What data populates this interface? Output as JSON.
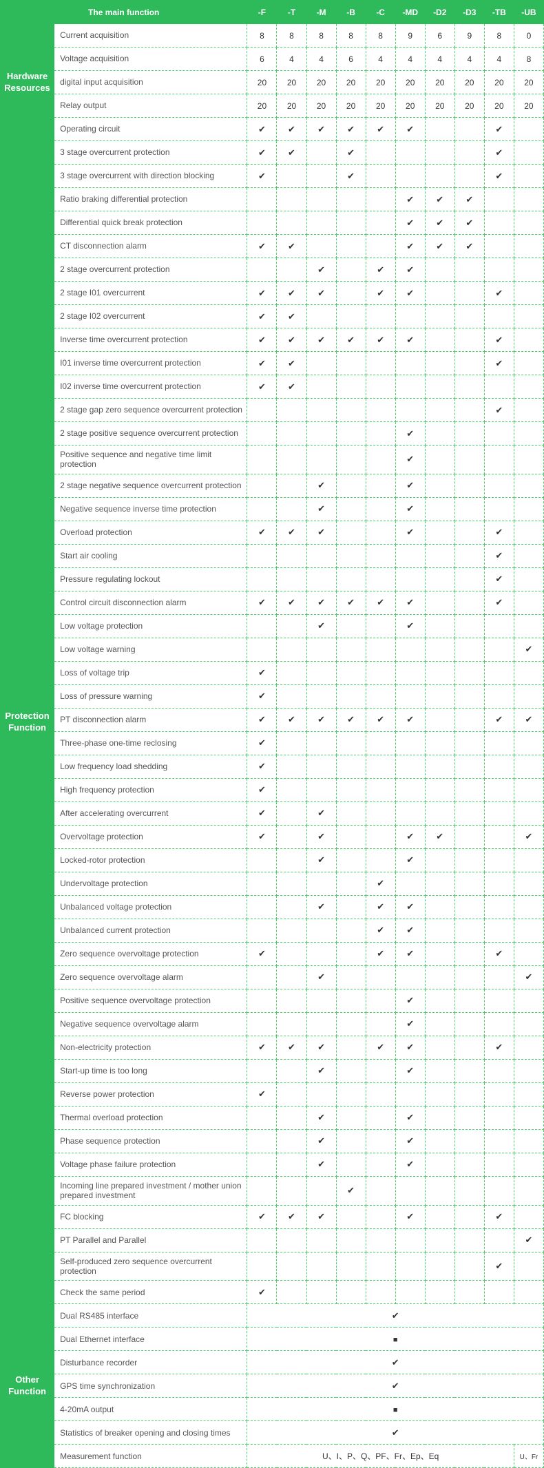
{
  "header": {
    "main": "The main function",
    "cols": [
      "-F",
      "-T",
      "-M",
      "-B",
      "-C",
      "-MD",
      "-D2",
      "-D3",
      "-TB",
      "-UB"
    ]
  },
  "groups": [
    {
      "title": "Hardware Resources",
      "rows": [
        {
          "name": "Current acquisition",
          "v": [
            "8",
            "8",
            "8",
            "8",
            "8",
            "9",
            "6",
            "9",
            "8",
            "0"
          ]
        },
        {
          "name": "Voltage acquisition",
          "v": [
            "6",
            "4",
            "4",
            "6",
            "4",
            "4",
            "4",
            "4",
            "4",
            "8"
          ]
        },
        {
          "name": "digital input acquisition",
          "v": [
            "20",
            "20",
            "20",
            "20",
            "20",
            "20",
            "20",
            "20",
            "20",
            "20"
          ]
        },
        {
          "name": "Relay output",
          "v": [
            "20",
            "20",
            "20",
            "20",
            "20",
            "20",
            "20",
            "20",
            "20",
            "20"
          ]
        },
        {
          "name": "Operating circuit",
          "v": [
            "c",
            "c",
            "c",
            "c",
            "c",
            "c",
            "",
            "",
            "c",
            ""
          ]
        }
      ]
    },
    {
      "title": "Protection Function",
      "rows": [
        {
          "name": "3 stage overcurrent protection",
          "v": [
            "c",
            "c",
            "",
            "c",
            "",
            "",
            "",
            "",
            "c",
            ""
          ]
        },
        {
          "name": "3 stage overcurrent with direction blocking",
          "v": [
            "c",
            "",
            "",
            "c",
            "",
            "",
            "",
            "",
            "c",
            ""
          ]
        },
        {
          "name": "Ratio braking differential protection",
          "v": [
            "",
            "",
            "",
            "",
            "",
            "c",
            "c",
            "c",
            "",
            ""
          ]
        },
        {
          "name": "Differential quick break protection",
          "v": [
            "",
            "",
            "",
            "",
            "",
            "c",
            "c",
            "c",
            "",
            ""
          ]
        },
        {
          "name": "CT disconnection alarm",
          "v": [
            "c",
            "c",
            "",
            "",
            "",
            "c",
            "c",
            "c",
            "",
            ""
          ]
        },
        {
          "name": "2 stage overcurrent protection",
          "v": [
            "",
            "",
            "c",
            "",
            "c",
            "c",
            "",
            "",
            "",
            ""
          ]
        },
        {
          "name": "2 stage I01 overcurrent",
          "v": [
            "c",
            "c",
            "c",
            "",
            "c",
            "c",
            "",
            "",
            "c",
            ""
          ]
        },
        {
          "name": "2 stage I02 overcurrent",
          "v": [
            "c",
            "c",
            "",
            "",
            "",
            "",
            "",
            "",
            "",
            ""
          ]
        },
        {
          "name": "Inverse time overcurrent protection",
          "v": [
            "c",
            "c",
            "c",
            "c",
            "c",
            "c",
            "",
            "",
            "c",
            ""
          ]
        },
        {
          "name": "I01 inverse time overcurrent protection",
          "v": [
            "c",
            "c",
            "",
            "",
            "",
            "",
            "",
            "",
            "c",
            ""
          ]
        },
        {
          "name": "I02 inverse time overcurrent protection",
          "v": [
            "c",
            "c",
            "",
            "",
            "",
            "",
            "",
            "",
            "",
            ""
          ]
        },
        {
          "name": "2 stage gap zero sequence overcurrent protection",
          "v": [
            "",
            "",
            "",
            "",
            "",
            "",
            "",
            "",
            "c",
            ""
          ]
        },
        {
          "name": "2 stage positive sequence overcurrent protection",
          "v": [
            "",
            "",
            "",
            "",
            "",
            "c",
            "",
            "",
            "",
            ""
          ]
        },
        {
          "name": "Positive sequence and negative time limit protection",
          "v": [
            "",
            "",
            "",
            "",
            "",
            "c",
            "",
            "",
            "",
            ""
          ]
        },
        {
          "name": "2 stage negative sequence overcurrent protection",
          "v": [
            "",
            "",
            "c",
            "",
            "",
            "c",
            "",
            "",
            "",
            ""
          ]
        },
        {
          "name": "Negative sequence inverse time protection",
          "v": [
            "",
            "",
            "c",
            "",
            "",
            "c",
            "",
            "",
            "",
            ""
          ]
        },
        {
          "name": "Overload protection",
          "v": [
            "c",
            "c",
            "c",
            "",
            "",
            "c",
            "",
            "",
            "c",
            ""
          ]
        },
        {
          "name": "Start air cooling",
          "v": [
            "",
            "",
            "",
            "",
            "",
            "",
            "",
            "",
            "c",
            ""
          ]
        },
        {
          "name": "Pressure regulating lockout",
          "v": [
            "",
            "",
            "",
            "",
            "",
            "",
            "",
            "",
            "c",
            ""
          ]
        },
        {
          "name": "Control circuit disconnection alarm",
          "v": [
            "c",
            "c",
            "c",
            "c",
            "c",
            "c",
            "",
            "",
            "c",
            ""
          ]
        },
        {
          "name": "Low voltage protection",
          "v": [
            "",
            "",
            "c",
            "",
            "",
            "c",
            "",
            "",
            "",
            ""
          ]
        },
        {
          "name": "Low voltage warning",
          "v": [
            "",
            "",
            "",
            "",
            "",
            "",
            "",
            "",
            "",
            "c"
          ]
        },
        {
          "name": "Loss of voltage trip",
          "v": [
            "c",
            "",
            "",
            "",
            "",
            "",
            "",
            "",
            "",
            ""
          ]
        },
        {
          "name": "Loss of pressure warning",
          "v": [
            "c",
            "",
            "",
            "",
            "",
            "",
            "",
            "",
            "",
            ""
          ]
        },
        {
          "name": "PT disconnection alarm",
          "v": [
            "c",
            "c",
            "c",
            "c",
            "c",
            "c",
            "",
            "",
            "c",
            "c"
          ]
        },
        {
          "name": "Three-phase one-time reclosing",
          "v": [
            "c",
            "",
            "",
            "",
            "",
            "",
            "",
            "",
            "",
            ""
          ]
        },
        {
          "name": "Low frequency load shedding",
          "v": [
            "c",
            "",
            "",
            "",
            "",
            "",
            "",
            "",
            "",
            ""
          ]
        },
        {
          "name": "High frequency protection",
          "v": [
            "c",
            "",
            "",
            "",
            "",
            "",
            "",
            "",
            "",
            ""
          ]
        },
        {
          "name": "After accelerating overcurrent",
          "v": [
            "c",
            "",
            "c",
            "",
            "",
            "",
            "",
            "",
            "",
            ""
          ]
        },
        {
          "name": "Overvoltage protection",
          "v": [
            "c",
            "",
            "c",
            "",
            "",
            "c",
            "c",
            "",
            "",
            "c"
          ]
        },
        {
          "name": "Locked-rotor protection",
          "v": [
            "",
            "",
            "c",
            "",
            "",
            "c",
            "",
            "",
            "",
            ""
          ]
        },
        {
          "name": "Undervoltage protection",
          "v": [
            "",
            "",
            "",
            "",
            "c",
            "",
            "",
            "",
            "",
            ""
          ]
        },
        {
          "name": "Unbalanced voltage protection",
          "v": [
            "",
            "",
            "c",
            "",
            "c",
            "c",
            "",
            "",
            "",
            ""
          ]
        },
        {
          "name": "Unbalanced current protection",
          "v": [
            "",
            "",
            "",
            "",
            "c",
            "c",
            "",
            "",
            "",
            ""
          ]
        },
        {
          "name": "Zero sequence overvoltage protection",
          "v": [
            "c",
            "",
            "",
            "",
            "c",
            "c",
            "",
            "",
            "c",
            ""
          ]
        },
        {
          "name": "Zero sequence overvoltage alarm",
          "v": [
            "",
            "",
            "c",
            "",
            "",
            "",
            "",
            "",
            "",
            "c"
          ]
        },
        {
          "name": "Positive sequence overvoltage protection",
          "v": [
            "",
            "",
            "",
            "",
            "",
            "c",
            "",
            "",
            "",
            ""
          ]
        },
        {
          "name": "Negative sequence overvoltage alarm",
          "v": [
            "",
            "",
            "",
            "",
            "",
            "c",
            "",
            "",
            "",
            ""
          ]
        },
        {
          "name": "Non-electricity protection",
          "v": [
            "c",
            "c",
            "c",
            "",
            "c",
            "c",
            "",
            "",
            "c",
            ""
          ]
        },
        {
          "name": "Start-up time is too long",
          "v": [
            "",
            "",
            "c",
            "",
            "",
            "c",
            "",
            "",
            "",
            ""
          ]
        },
        {
          "name": "Reverse power protection",
          "v": [
            "c",
            "",
            "",
            "",
            "",
            "",
            "",
            "",
            "",
            ""
          ]
        },
        {
          "name": "Thermal overload protection",
          "v": [
            "",
            "",
            "c",
            "",
            "",
            "c",
            "",
            "",
            "",
            ""
          ]
        },
        {
          "name": "Phase sequence protection",
          "v": [
            "",
            "",
            "c",
            "",
            "",
            "c",
            "",
            "",
            "",
            ""
          ]
        },
        {
          "name": "Voltage phase failure protection",
          "v": [
            "",
            "",
            "c",
            "",
            "",
            "c",
            "",
            "",
            "",
            ""
          ]
        },
        {
          "name": "Incoming line prepared investment / mother union prepared investment",
          "v": [
            "",
            "",
            "",
            "c",
            "",
            "",
            "",
            "",
            "",
            ""
          ]
        },
        {
          "name": "FC blocking",
          "v": [
            "c",
            "c",
            "c",
            "",
            "",
            "c",
            "",
            "",
            "c",
            ""
          ]
        },
        {
          "name": "PT Parallel and Parallel",
          "v": [
            "",
            "",
            "",
            "",
            "",
            "",
            "",
            "",
            "",
            "c"
          ]
        },
        {
          "name": "Self-produced zero sequence overcurrent protection",
          "v": [
            "",
            "",
            "",
            "",
            "",
            "",
            "",
            "",
            "c",
            ""
          ]
        },
        {
          "name": "Check the same period",
          "v": [
            "c",
            "",
            "",
            "",
            "",
            "",
            "",
            "",
            "",
            ""
          ]
        }
      ]
    },
    {
      "title": "Other Function",
      "rows": [
        {
          "name": "Dual RS485 interface",
          "merged": "c"
        },
        {
          "name": "Dual Ethernet interface",
          "merged": "s"
        },
        {
          "name": "Disturbance recorder",
          "merged": "c"
        },
        {
          "name": "GPS time synchronization",
          "merged": "c"
        },
        {
          "name": "4-20mA output",
          "merged": "s"
        },
        {
          "name": "Statistics of breaker opening and closing times",
          "merged": "c"
        },
        {
          "name": "Measurement function",
          "split": {
            "left": "U、I、P、Q、PF、Fr、Ep、Eq",
            "right": "U、Fr"
          }
        }
      ]
    }
  ],
  "colors": {
    "header_bg": "#2eb95b",
    "border": "#4dd06b",
    "text": "#333333"
  }
}
